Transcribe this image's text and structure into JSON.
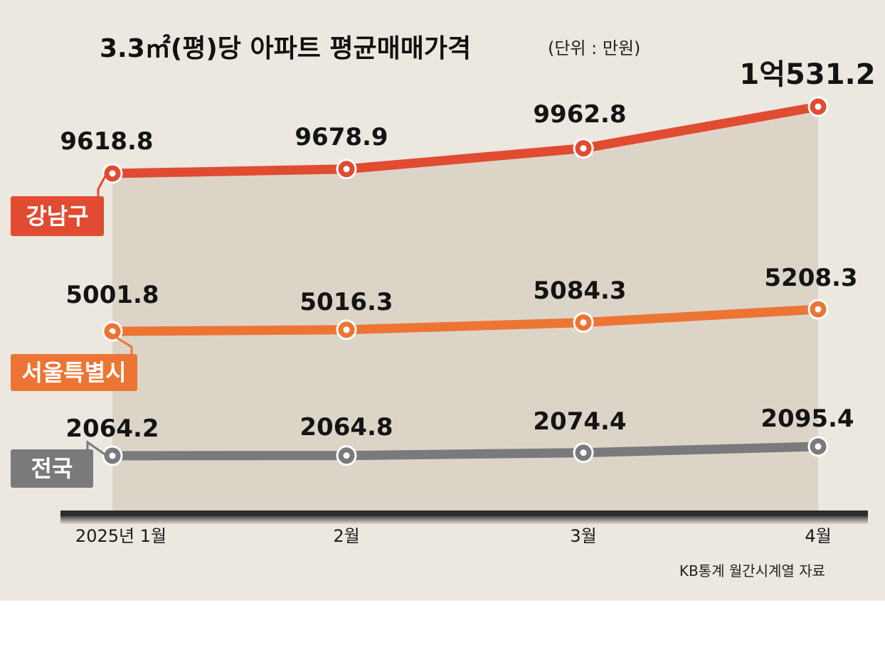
{
  "chart_data": {
    "type": "line",
    "title": "3.3㎡(평)당 아파트 평균매매가격",
    "unit_label": "(단위 : 만원)",
    "categories": [
      "2025년 1월",
      "2월",
      "3월",
      "4월"
    ],
    "series": [
      {
        "name": "강남구",
        "color": "#e04b31",
        "values": [
          9618.8,
          9678.9,
          9962.8,
          10531.2
        ],
        "labels": [
          "9618.8",
          "9678.9",
          "9962.8",
          "1억531.2"
        ]
      },
      {
        "name": "서울특별시",
        "color": "#ec7534",
        "values": [
          5001.8,
          5016.3,
          5084.3,
          5208.3
        ],
        "labels": [
          "5001.8",
          "5016.3",
          "5084.3",
          "5208.3"
        ]
      },
      {
        "name": "전국",
        "color": "#7a7a7c",
        "values": [
          2064.2,
          2064.8,
          2074.4,
          2095.4
        ],
        "labels": [
          "2064.2",
          "2064.8",
          "2074.4",
          "2095.4"
        ]
      }
    ],
    "source": "KB통계 월간시계열 자료",
    "colors": {
      "background": "#ece7df",
      "area": "#dcd5c7",
      "axis": "#2c2c2c",
      "highlight_label": "#e04b31"
    }
  }
}
